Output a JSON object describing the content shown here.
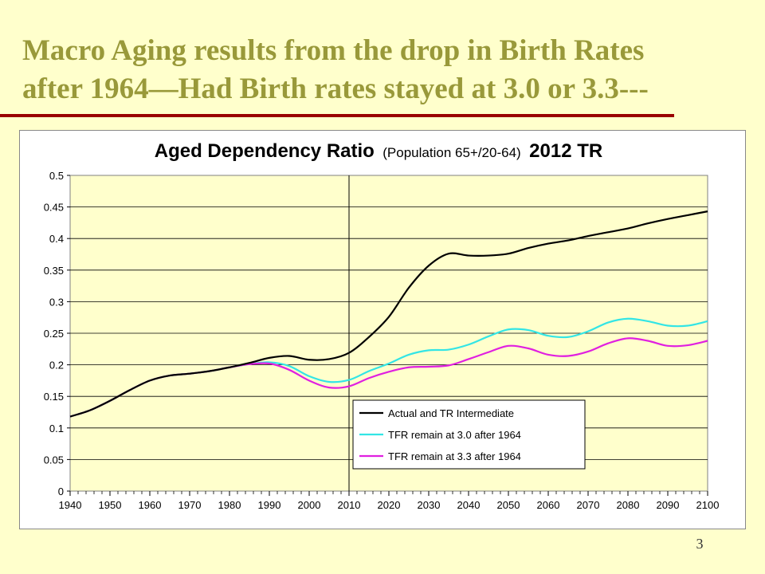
{
  "slide": {
    "title_line1": "Macro Aging results from the drop in Birth Rates",
    "title_line2": "after 1964—Had Birth rates stayed at 3.0 or 3.3---",
    "page_number": "3",
    "colors": {
      "background": "#FFFFCC",
      "title": "#99993A",
      "rule": "#990000"
    }
  },
  "chart_data": {
    "type": "line",
    "title": "Aged Dependency Ratio",
    "title_paren": "(Population 65+/20-64)",
    "title_suffix": "2012 TR",
    "xlim": [
      1940,
      2100
    ],
    "ylim": [
      0,
      0.5
    ],
    "x_ticks": [
      "1940",
      "1950",
      "1960",
      "1970",
      "1980",
      "1990",
      "2000",
      "2010",
      "2020",
      "2030",
      "2040",
      "2050",
      "2060",
      "2070",
      "2080",
      "2090",
      "2100"
    ],
    "y_ticks": [
      "0",
      "0.05",
      "0.1",
      "0.15",
      "0.2",
      "0.25",
      "0.3",
      "0.35",
      "0.4",
      "0.45",
      "0.5"
    ],
    "vertical_marker_x": 2010,
    "grid": "horizontal",
    "legend_position": "bottom-center",
    "series": [
      {
        "name": "Actual and TR Intermediate",
        "color": "#000000",
        "x": [
          1940,
          1945,
          1950,
          1955,
          1960,
          1965,
          1970,
          1975,
          1980,
          1985,
          1990,
          1995,
          2000,
          2005,
          2010,
          2015,
          2020,
          2025,
          2030,
          2035,
          2040,
          2045,
          2050,
          2055,
          2060,
          2065,
          2070,
          2075,
          2080,
          2085,
          2090,
          2095,
          2100
        ],
        "y": [
          0.118,
          0.128,
          0.143,
          0.16,
          0.175,
          0.183,
          0.186,
          0.19,
          0.196,
          0.203,
          0.211,
          0.214,
          0.208,
          0.209,
          0.219,
          0.244,
          0.276,
          0.322,
          0.357,
          0.376,
          0.373,
          0.373,
          0.376,
          0.385,
          0.392,
          0.397,
          0.404,
          0.41,
          0.416,
          0.424,
          0.431,
          0.437,
          0.443
        ]
      },
      {
        "name": "TFR remain at 3.0 after 1964",
        "color": "#33E5E5",
        "x": [
          1940,
          1945,
          1950,
          1955,
          1960,
          1965,
          1970,
          1975,
          1980,
          1985,
          1990,
          1995,
          2000,
          2005,
          2010,
          2015,
          2020,
          2025,
          2030,
          2035,
          2040,
          2045,
          2050,
          2055,
          2060,
          2065,
          2070,
          2075,
          2080,
          2085,
          2090,
          2095,
          2100
        ],
        "y": [
          0.118,
          0.128,
          0.143,
          0.16,
          0.175,
          0.183,
          0.186,
          0.19,
          0.196,
          0.201,
          0.204,
          0.198,
          0.182,
          0.173,
          0.176,
          0.19,
          0.202,
          0.216,
          0.223,
          0.224,
          0.232,
          0.245,
          0.256,
          0.255,
          0.246,
          0.244,
          0.253,
          0.267,
          0.273,
          0.269,
          0.262,
          0.262,
          0.269
        ]
      },
      {
        "name": "TFR remain at 3.3 after 1964",
        "color": "#E020E0",
        "x": [
          1940,
          1945,
          1950,
          1955,
          1960,
          1965,
          1970,
          1975,
          1980,
          1985,
          1990,
          1995,
          2000,
          2005,
          2010,
          2015,
          2020,
          2025,
          2030,
          2035,
          2040,
          2045,
          2050,
          2055,
          2060,
          2065,
          2070,
          2075,
          2080,
          2085,
          2090,
          2095,
          2100
        ],
        "y": [
          0.118,
          0.128,
          0.143,
          0.16,
          0.175,
          0.183,
          0.186,
          0.19,
          0.196,
          0.201,
          0.202,
          0.192,
          0.175,
          0.164,
          0.166,
          0.179,
          0.189,
          0.196,
          0.197,
          0.199,
          0.209,
          0.22,
          0.23,
          0.226,
          0.216,
          0.214,
          0.221,
          0.234,
          0.242,
          0.238,
          0.23,
          0.231,
          0.238
        ]
      }
    ]
  }
}
